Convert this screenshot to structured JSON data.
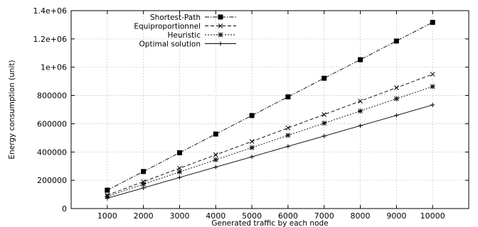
{
  "chart_data": {
    "type": "line",
    "title": "",
    "xlabel": "Generated traffic by each node",
    "ylabel": "Energy consumption (unit)",
    "xlim": [
      0,
      11000
    ],
    "ylim": [
      0,
      1400000
    ],
    "x_ticks": [
      1000,
      2000,
      3000,
      4000,
      5000,
      6000,
      7000,
      8000,
      9000,
      10000
    ],
    "x_tick_labels": [
      "1000",
      "2000",
      "3000",
      "4000",
      "5000",
      "6000",
      "7000",
      "8000",
      "9000",
      "10000"
    ],
    "y_ticks": [
      0,
      200000,
      400000,
      600000,
      800000,
      1000000,
      1200000,
      1400000
    ],
    "y_tick_labels": [
      "0",
      "200000",
      "400000",
      "600000",
      "800000",
      "1e+06",
      "1.2e+06",
      "1.4e+06"
    ],
    "grid": true,
    "legend_position": "top-left",
    "x": [
      1000,
      2000,
      3000,
      4000,
      5000,
      6000,
      7000,
      8000,
      9000,
      10000
    ],
    "series": [
      {
        "name": "Shortest-Path",
        "marker": "square",
        "dash": "dash-dot",
        "color": "#000000",
        "values": [
          130000,
          262000,
          395000,
          527000,
          658000,
          790000,
          922000,
          1053000,
          1185000,
          1317000
        ]
      },
      {
        "name": "Equiproportionnel",
        "marker": "x",
        "dash": "dashed",
        "color": "#000000",
        "values": [
          95000,
          190000,
          285000,
          380000,
          475000,
          570000,
          665000,
          760000,
          855000,
          950000
        ]
      },
      {
        "name": "Heuristic",
        "marker": "star",
        "dash": "dotted",
        "color": "#000000",
        "values": [
          86000,
          172000,
          259000,
          345000,
          431000,
          518000,
          604000,
          690000,
          777000,
          863000
        ]
      },
      {
        "name": "Optimal solution",
        "marker": "plus",
        "dash": "solid",
        "color": "#000000",
        "values": [
          73000,
          146000,
          220000,
          293000,
          366000,
          440000,
          513000,
          586000,
          659000,
          733000
        ]
      }
    ]
  }
}
